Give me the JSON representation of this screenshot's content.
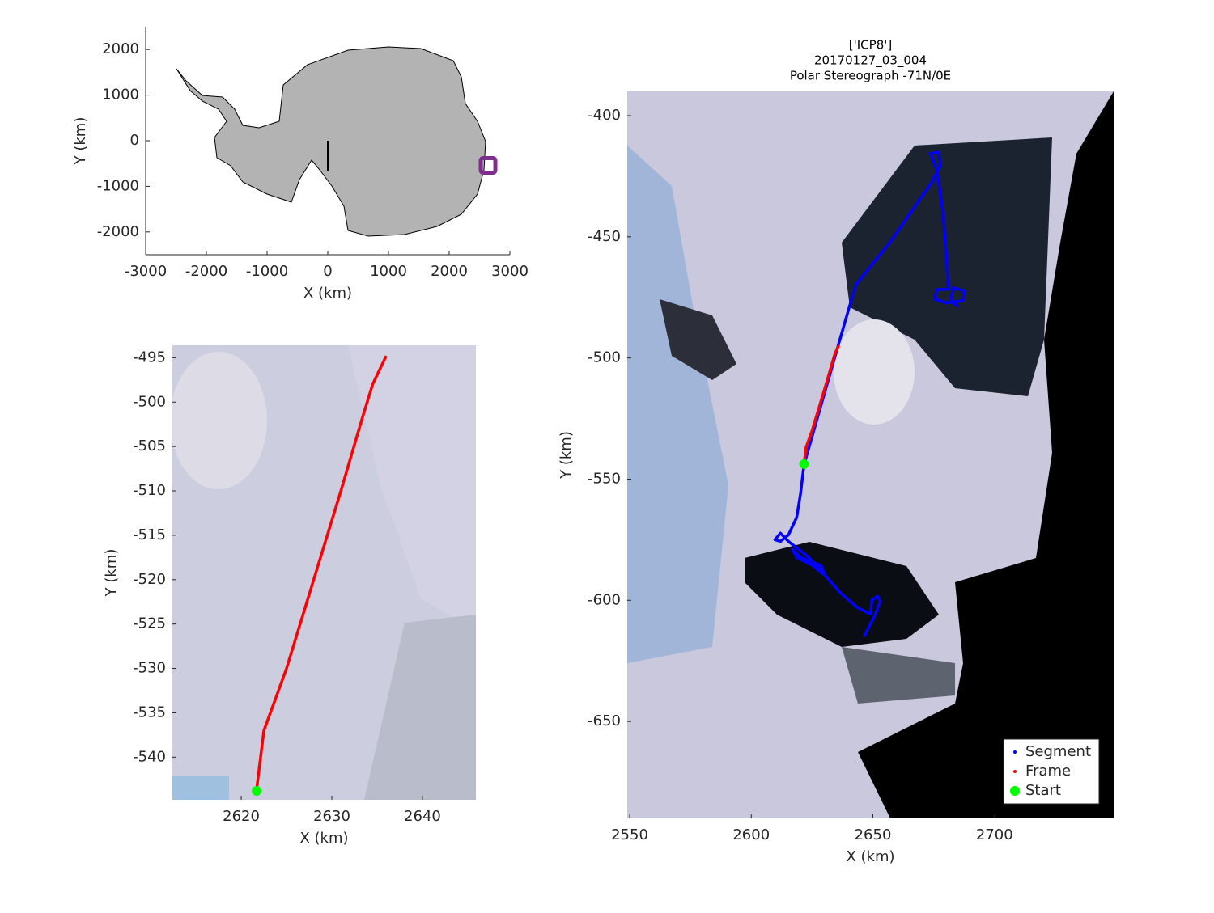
{
  "chart_data": [
    {
      "type": "map",
      "xlabel": "X (km)",
      "ylabel": "Y (km)",
      "xlim": [
        -3000,
        3000
      ],
      "ylim": [
        -2500,
        2500
      ],
      "xticks": [
        -3000,
        -2000,
        -1000,
        0,
        1000,
        2000,
        3000
      ],
      "yticks": [
        -2000,
        -1000,
        0,
        1000,
        2000
      ],
      "series": [
        {
          "color": "#7e2f8e",
          "x": [
            2640
          ],
          "y": [
            -540
          ],
          "style": "square"
        }
      ]
    },
    {
      "type": "map",
      "xlabel": "X (km)",
      "ylabel": "Y (km)",
      "xlim": [
        2612.4,
        2645.9
      ],
      "ylim": [
        -544.8,
        -493.6
      ],
      "xticks": [
        2620,
        2630,
        2640
      ],
      "yticks": [
        -540,
        -535,
        -530,
        -525,
        -520,
        -515,
        -510,
        -505,
        -500,
        -495
      ],
      "series": [
        {
          "color": "#ff0000",
          "x": [
            2621.7,
            2622.5,
            2625,
            2628,
            2631,
            2633.3,
            2634.5,
            2636
          ],
          "y": [
            -543.6,
            -537,
            -530,
            -520,
            -510,
            -502,
            -498,
            -494.8
          ],
          "style": "line"
        },
        {
          "color": "#00ff00",
          "x": [
            2621.7
          ],
          "y": [
            -543.8
          ],
          "style": "marker"
        }
      ]
    },
    {
      "type": "map",
      "title": [
        "['ICP8']",
        "20170127_03_004",
        "Polar Stereograph -71N/0E"
      ],
      "xlabel": "X (km)",
      "ylabel": "Y (km)",
      "xlim": [
        2549,
        2749
      ],
      "ylim": [
        -690,
        -390
      ],
      "xticks": [
        2550,
        2600,
        2650,
        2700
      ],
      "yticks": [
        -650,
        -600,
        -550,
        -500,
        -450,
        -400
      ],
      "legend": "lower right",
      "series": [
        {
          "name": "Segment",
          "color": "#0000ff",
          "style": "line",
          "x": [
            2646.3,
            2650.3,
            2653,
            2652,
            2649.7,
            2649,
            2643.7,
            2637,
            2630.3,
            2628.7,
            2620.3,
            2617,
            2618.7,
            2625.3,
            2630.3,
            2623.7,
            2615.3,
            2612,
            2609.7,
            2612,
            2615.3,
            2618.7,
            2620.3,
            2621.7,
            2635.7,
            2640.3,
            2643,
            2657,
            2673.7,
            2677.7,
            2677,
            2673.7,
            2676.3,
            2678.7,
            2680.3,
            2681,
            2676.3,
            2675.3,
            2680.3,
            2687,
            2687.7,
            2683,
            2682,
            2685.3
          ],
          "y": [
            -615,
            -607.3,
            -600.7,
            -598.3,
            -599.7,
            -605.7,
            -603,
            -597.3,
            -589.7,
            -585.7,
            -582.3,
            -579,
            -582.3,
            -585.7,
            -589.7,
            -582.3,
            -575.7,
            -572.3,
            -575,
            -575.7,
            -573,
            -565.7,
            -555.7,
            -544,
            -495,
            -479,
            -469.7,
            -452.3,
            -428.3,
            -420.7,
            -415,
            -415.7,
            -422.3,
            -439,
            -459,
            -471.7,
            -471.7,
            -475.7,
            -477.3,
            -476.3,
            -472.3,
            -471,
            -476.3,
            -479
          ]
        },
        {
          "name": "Frame",
          "color": "#ff0000",
          "style": "line",
          "x": [
            2621.7,
            2622.5,
            2625,
            2628,
            2631,
            2633.3,
            2634.5,
            2636
          ],
          "y": [
            -543.6,
            -537,
            -530,
            -520,
            -510,
            -502,
            -498,
            -494.8
          ]
        },
        {
          "name": "Start",
          "color": "#00ff00",
          "style": "marker",
          "x": [
            2621.7
          ],
          "y": [
            -543.8
          ]
        }
      ]
    }
  ]
}
